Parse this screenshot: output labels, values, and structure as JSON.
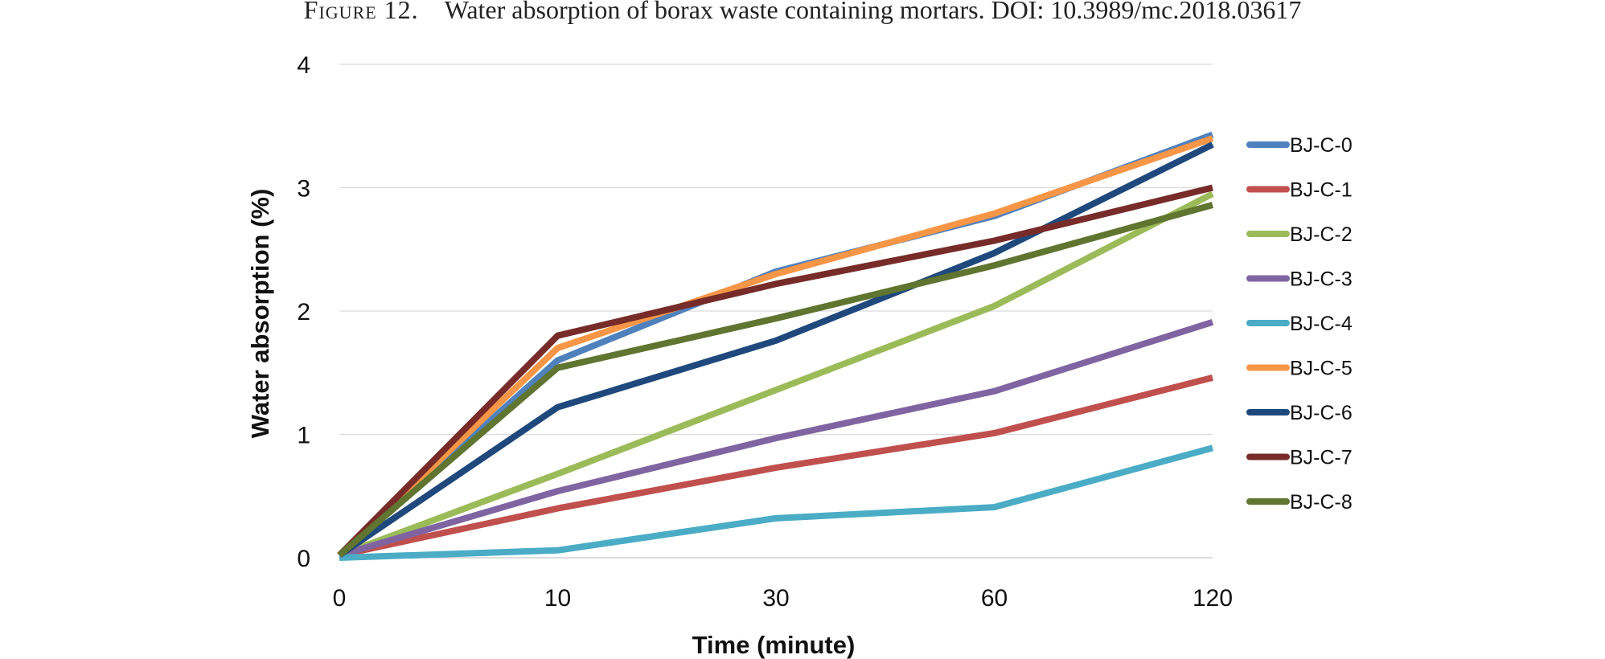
{
  "caption": {
    "label": "Figure 12.",
    "text": "Water absorption of borax waste containing mortars. DOI: 10.3989/mc.2018.03617"
  },
  "chart_data": {
    "type": "line",
    "title": "",
    "xlabel": "Time (minute)",
    "ylabel": "Water absorption (%)",
    "categories": [
      "0",
      "10",
      "30",
      "60",
      "120"
    ],
    "yticks": [
      "0",
      "1",
      "2",
      "3",
      "4"
    ],
    "ylim": [
      0,
      4
    ],
    "grid": "horizontal",
    "legend_position": "right",
    "series": [
      {
        "name": "BJ-C-0",
        "color": "#4F81BD",
        "values": [
          0.02,
          1.6,
          2.32,
          2.77,
          3.43
        ]
      },
      {
        "name": "BJ-C-1",
        "color": "#C0504D",
        "values": [
          0.02,
          0.4,
          0.73,
          1.01,
          1.46
        ]
      },
      {
        "name": "BJ-C-2",
        "color": "#9BBB59",
        "values": [
          0.02,
          0.68,
          1.36,
          2.04,
          2.95
        ]
      },
      {
        "name": "BJ-C-3",
        "color": "#8064A2",
        "values": [
          0.02,
          0.54,
          0.97,
          1.35,
          1.91
        ]
      },
      {
        "name": "BJ-C-4",
        "color": "#4BACC6",
        "values": [
          0.0,
          0.06,
          0.32,
          0.41,
          0.89
        ]
      },
      {
        "name": "BJ-C-5",
        "color": "#F79646",
        "values": [
          0.02,
          1.7,
          2.3,
          2.79,
          3.4
        ]
      },
      {
        "name": "BJ-C-6",
        "color": "#1F497D",
        "values": [
          0.02,
          1.22,
          1.76,
          2.47,
          3.35
        ]
      },
      {
        "name": "BJ-C-7",
        "color": "#772C2A",
        "values": [
          0.02,
          1.8,
          2.22,
          2.57,
          3.0
        ]
      },
      {
        "name": "BJ-C-8",
        "color": "#5F7530",
        "values": [
          0.02,
          1.54,
          1.94,
          2.37,
          2.86
        ]
      }
    ]
  }
}
